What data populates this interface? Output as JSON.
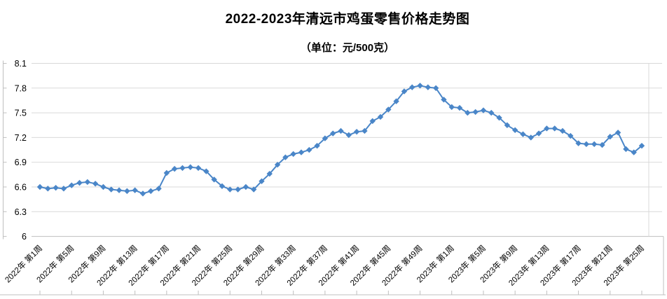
{
  "chart_data": {
    "type": "line",
    "title": "2022-2023年清远市鸡蛋零售价格走势图",
    "subtitle": "（单位：元/500克）",
    "unit": "元/500克",
    "y_axis": {
      "min": 6,
      "max": 8.1,
      "ticks": [
        6,
        6.3,
        6.6,
        6.9,
        7.2,
        7.5,
        7.8,
        8.1
      ],
      "tick_labels": [
        "6",
        "6.3",
        "6.6",
        "6.9",
        "7.2",
        "7.5",
        "7.8",
        "8.1"
      ]
    },
    "x_axis": {
      "label_every_n_points": 4,
      "tick_labels": [
        "2022年 第1周",
        "2022年 第5周",
        "2022年 第9周",
        "2022年 第13周",
        "2022年 第17周",
        "2022年 第21周",
        "2022年 第25周",
        "2022年 第29周",
        "2022年 第33周",
        "2022年 第37周",
        "2022年 第41周",
        "2022年 第45周",
        "2022年 第49周",
        "2023年 第1周",
        "2023年 第5周",
        "2023年 第9周",
        "2023年 第13周",
        "2023年 第17周",
        "2023年 第21周",
        "2023年 第25周"
      ]
    },
    "n_points": 77,
    "series": [
      {
        "marker": "diamond",
        "color": "#4a86c8",
        "values": [
          6.6,
          6.58,
          6.59,
          6.58,
          6.62,
          6.65,
          6.66,
          6.64,
          6.6,
          6.57,
          6.56,
          6.55,
          6.56,
          6.52,
          6.55,
          6.58,
          6.77,
          6.82,
          6.83,
          6.84,
          6.83,
          6.79,
          6.69,
          6.61,
          6.57,
          6.57,
          6.6,
          6.57,
          6.67,
          6.76,
          6.87,
          6.96,
          7.0,
          7.02,
          7.05,
          7.1,
          7.19,
          7.25,
          7.28,
          7.23,
          7.27,
          7.28,
          7.4,
          7.45,
          7.54,
          7.64,
          7.76,
          7.81,
          7.83,
          7.81,
          7.8,
          7.66,
          7.57,
          7.56,
          7.5,
          7.51,
          7.53,
          7.5,
          7.44,
          7.35,
          7.29,
          7.24,
          7.2,
          7.25,
          7.31,
          7.31,
          7.28,
          7.22,
          7.13,
          7.12,
          7.12,
          7.11,
          7.21,
          7.26,
          7.06,
          7.02,
          7.1
        ]
      }
    ],
    "grid": true,
    "legend": false,
    "colors": {
      "line": "#4a86c8",
      "gridline": "#d9d9d9",
      "axis_line": "#bfbfbf",
      "text": "#000000",
      "background": "#ffffff"
    }
  }
}
